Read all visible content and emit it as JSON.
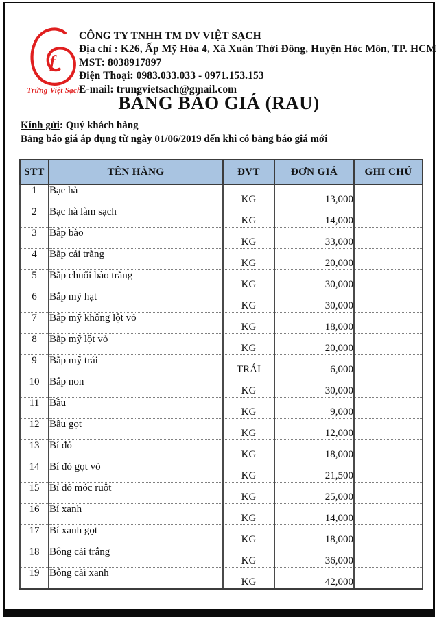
{
  "company": {
    "logo_caption": "Trứng Việt Sạch",
    "name": "CÔNG TY TNHH TM DV VIỆT SẠCH",
    "address": "Địa chỉ : K26, Ấp Mỹ Hòa 4, Xã Xuân Thới Đông, Huyện Hóc Môn, TP. HCM",
    "tax_code": "MST: 8038917897",
    "phone": "Điện Thoại: 0983.033.033 - 0971.153.153",
    "email": "E-mail: trungvietsach@gmail.com"
  },
  "title": "BẢNG BÁO GIÁ (RAU)",
  "greeting": {
    "label": "Kính gửi",
    "rest": ": Quý khách hàng"
  },
  "validity_note": "Bảng báo giá áp dụng từ ngày 01/06/2019 đến khi có bảng báo giá mới",
  "table": {
    "headers": [
      "STT",
      "TÊN HÀNG",
      "ĐVT",
      "ĐƠN GIÁ",
      "GHI CHÚ"
    ],
    "rows": [
      {
        "stt": "1",
        "name": "Bạc hà",
        "unit": "KG",
        "price": "13,000",
        "note": ""
      },
      {
        "stt": "2",
        "name": "Bạc hà làm sạch",
        "unit": "KG",
        "price": "14,000",
        "note": ""
      },
      {
        "stt": "3",
        "name": "Bắp bào",
        "unit": "KG",
        "price": "33,000",
        "note": ""
      },
      {
        "stt": "4",
        "name": "Bắp cải trắng",
        "unit": "KG",
        "price": "20,000",
        "note": ""
      },
      {
        "stt": "5",
        "name": "Bắp chuối bào trắng",
        "unit": "KG",
        "price": "30,000",
        "note": ""
      },
      {
        "stt": "6",
        "name": "Bắp mỹ hạt",
        "unit": "KG",
        "price": "30,000",
        "note": ""
      },
      {
        "stt": "7",
        "name": "Bắp mỹ không lột vỏ",
        "unit": "KG",
        "price": "18,000",
        "note": ""
      },
      {
        "stt": "8",
        "name": "Bắp mỹ lột vỏ",
        "unit": "KG",
        "price": "20,000",
        "note": ""
      },
      {
        "stt": "9",
        "name": "Bắp mỹ trái",
        "unit": "TRÁI",
        "price": "6,000",
        "note": ""
      },
      {
        "stt": "10",
        "name": "Bắp non",
        "unit": "KG",
        "price": "30,000",
        "note": ""
      },
      {
        "stt": "11",
        "name": "Bầu",
        "unit": "KG",
        "price": "9,000",
        "note": ""
      },
      {
        "stt": "12",
        "name": "Bầu gọt",
        "unit": "KG",
        "price": "12,000",
        "note": ""
      },
      {
        "stt": "13",
        "name": "Bí đỏ",
        "unit": "KG",
        "price": "18,000",
        "note": ""
      },
      {
        "stt": "14",
        "name": "Bí đỏ gọt vỏ",
        "unit": "KG",
        "price": "21,500",
        "note": ""
      },
      {
        "stt": "15",
        "name": "Bí đỏ móc ruột",
        "unit": "KG",
        "price": "25,000",
        "note": ""
      },
      {
        "stt": "16",
        "name": "Bí xanh",
        "unit": "KG",
        "price": "14,000",
        "note": ""
      },
      {
        "stt": "17",
        "name": "Bí xanh gọt",
        "unit": "KG",
        "price": "18,000",
        "note": ""
      },
      {
        "stt": "18",
        "name": "Bông cải trắng",
        "unit": "KG",
        "price": "36,000",
        "note": ""
      },
      {
        "stt": "19",
        "name": "Bông cải xanh",
        "unit": "KG",
        "price": "42,000",
        "note": ""
      }
    ]
  },
  "colors": {
    "accent_red": "#e01f1f",
    "table_header_blue": "#a9c4e1",
    "page_border_black": "#0b0b0b"
  }
}
